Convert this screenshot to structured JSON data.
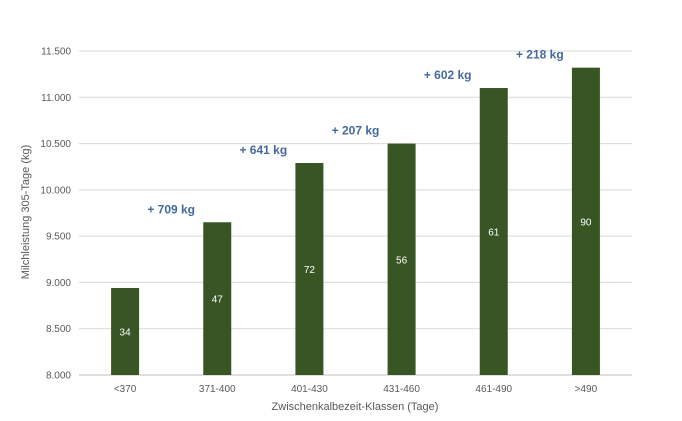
{
  "chart_data": {
    "type": "bar",
    "title": "",
    "xlabel": "Zwischenkalbezeit-Klassen (Tage)",
    "ylabel": "Milchleistung 305-Tage (kg)",
    "categories": [
      "<370",
      "371-400",
      "401-430",
      "431-460",
      "461-490",
      ">490"
    ],
    "values": [
      8940,
      9650,
      10290,
      10500,
      11100,
      11320
    ],
    "bar_labels": [
      "34",
      "47",
      "72",
      "56",
      "61",
      "90"
    ],
    "ylim": [
      8000,
      11500
    ],
    "yticks": [
      8000,
      8500,
      9000,
      9500,
      10000,
      10500,
      11000,
      11500
    ],
    "ytick_labels": [
      "8.000",
      "8.500",
      "9.000",
      "9.500",
      "10.000",
      "10.500",
      "11.000",
      "11.500"
    ],
    "annotations": [
      "+ 709 kg",
      "+ 641 kg",
      "+ 207 kg",
      "+ 602 kg",
      "+ 218 kg"
    ],
    "grid": true,
    "legend": "none",
    "colors": {
      "bar": "#375623",
      "annotation": "#44699c",
      "grid": "#d9d9d9"
    }
  }
}
